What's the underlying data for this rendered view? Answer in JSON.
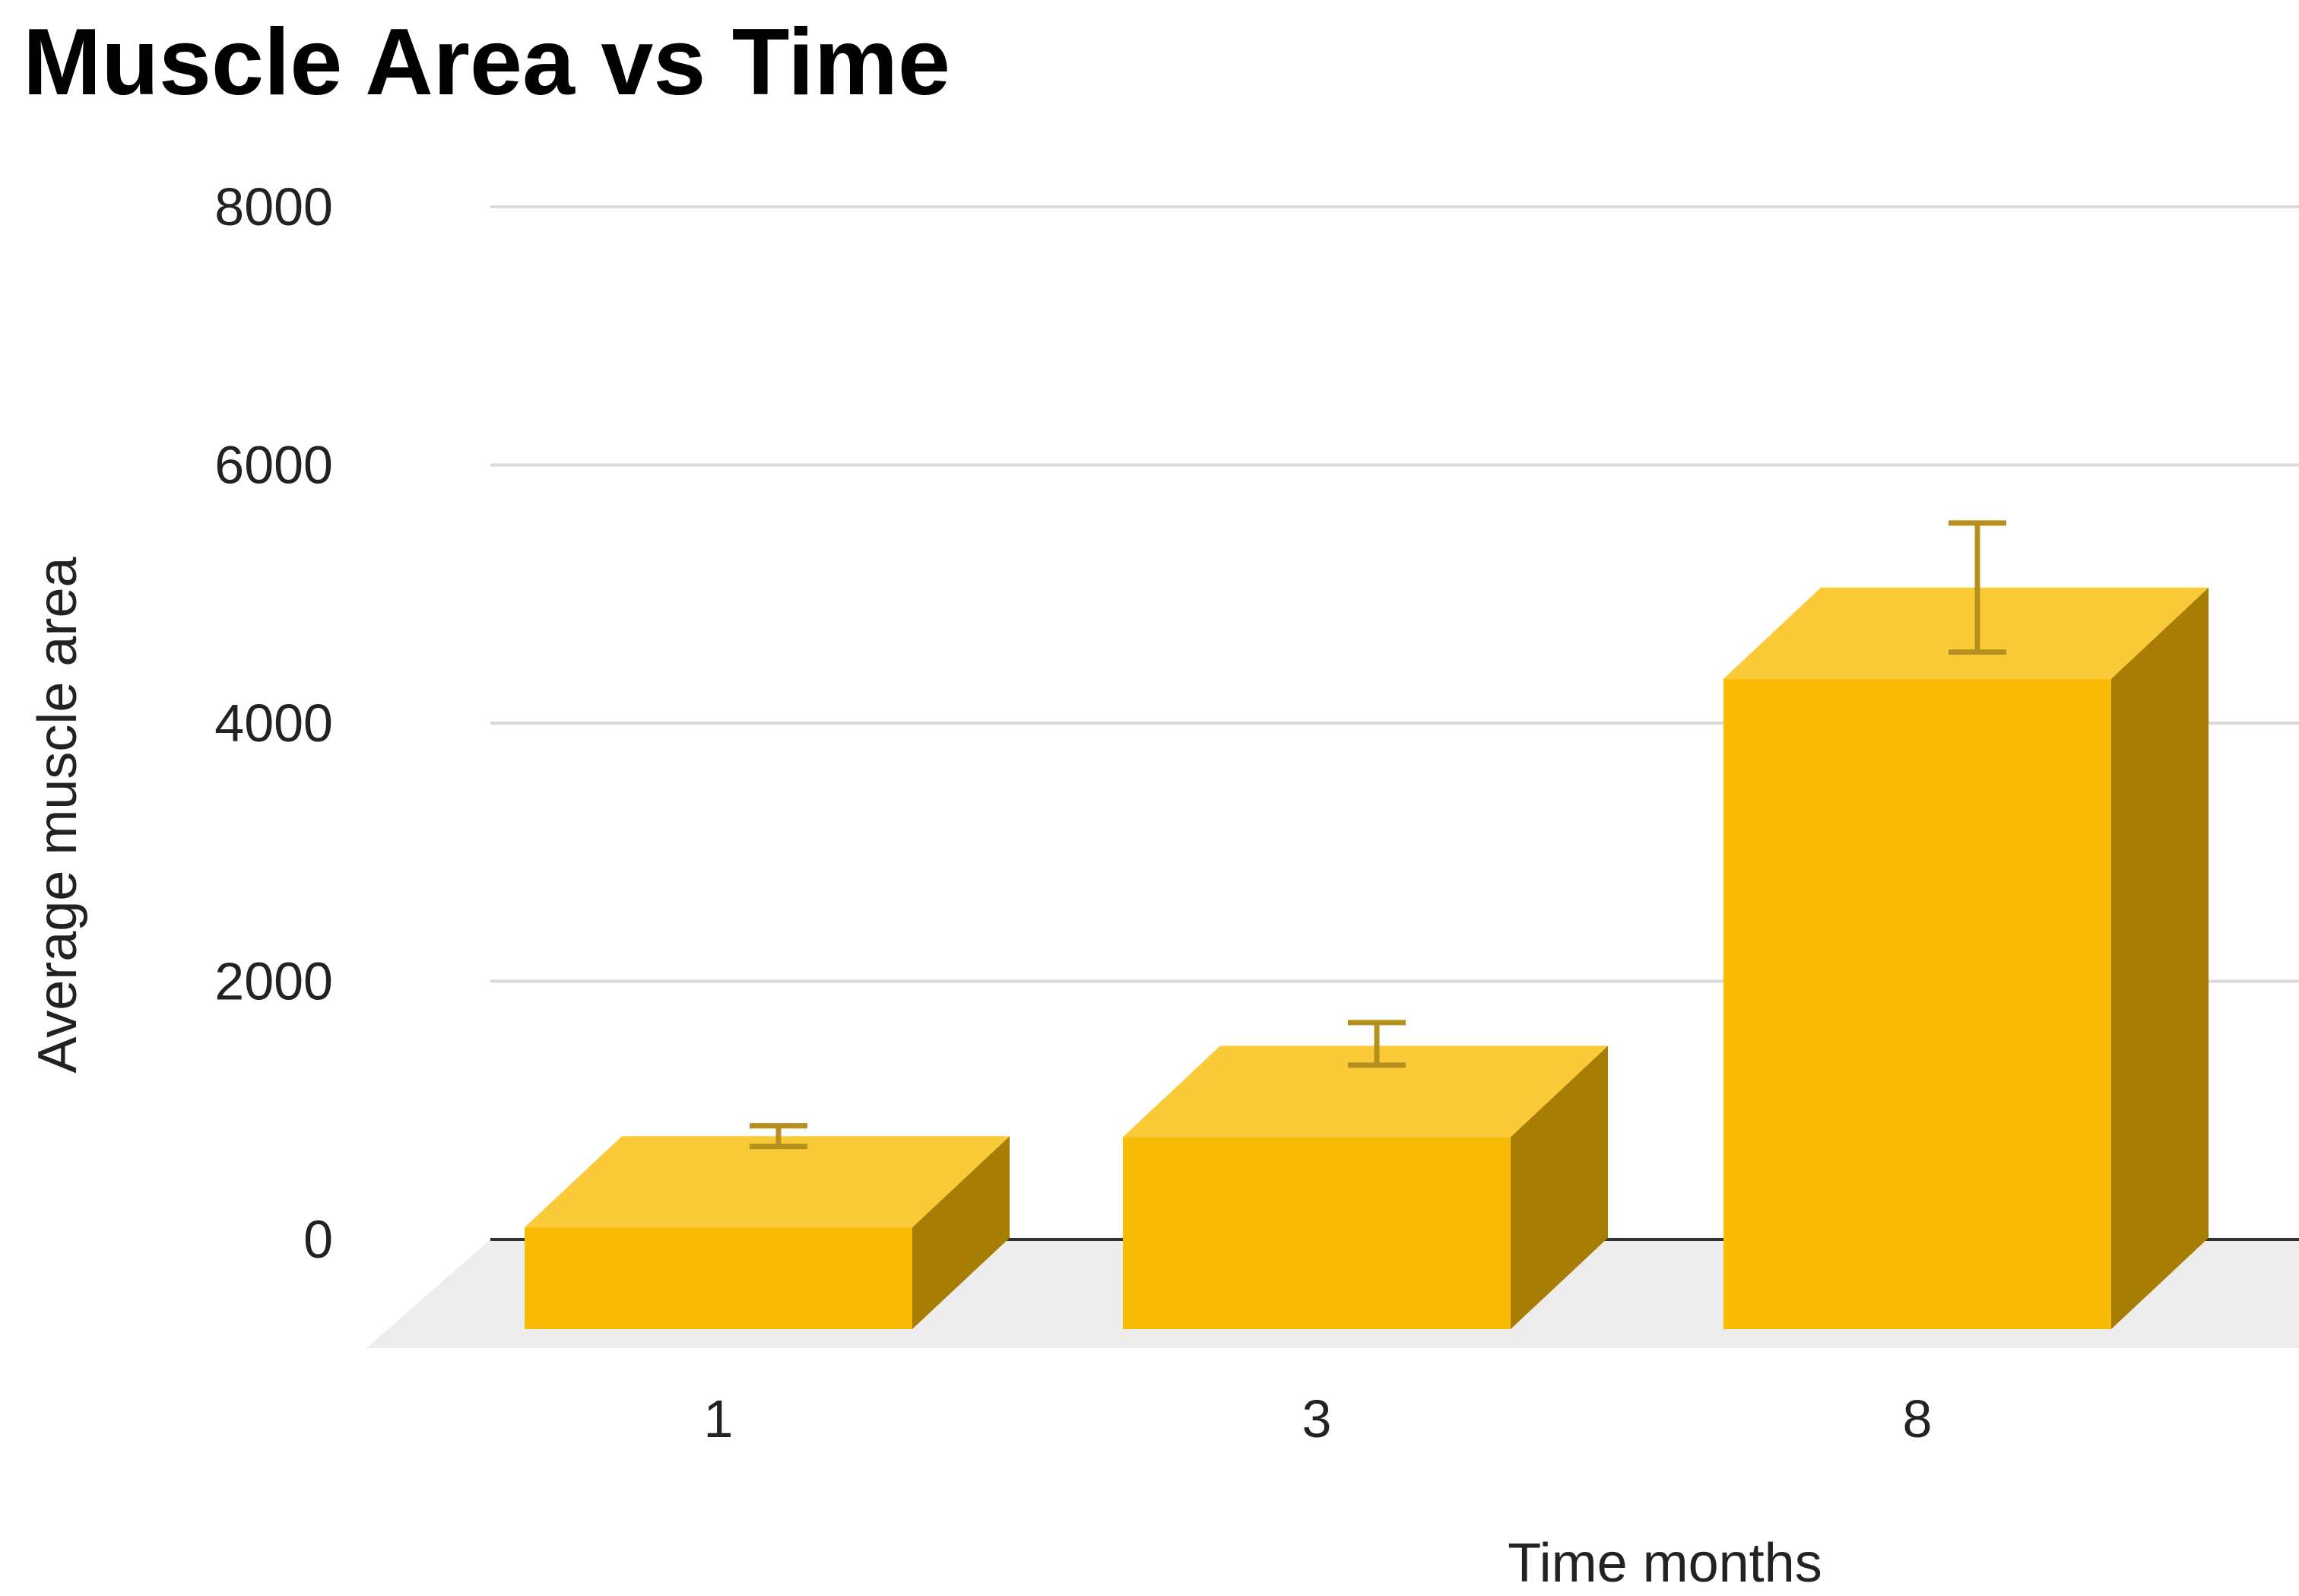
{
  "chart_data": {
    "type": "bar",
    "title": "Muscle Area vs Time",
    "xlabel": "Time months",
    "ylabel": "Average muscle area",
    "categories": [
      "1",
      "3",
      "8"
    ],
    "values": [
      800,
      1500,
      5050
    ],
    "error_bars": [
      {
        "low": 720,
        "high": 880
      },
      {
        "low": 1350,
        "high": 1680
      },
      {
        "low": 4550,
        "high": 5550
      }
    ],
    "ylim": [
      0,
      8000
    ],
    "yticks": [
      0,
      2000,
      4000,
      6000,
      8000
    ],
    "grid": true,
    "style": "3d",
    "colors": {
      "bar_front": "#F9BC06",
      "bar_top": "#FACA38",
      "bar_side": "#A87D03",
      "error_bar": "#B5901F",
      "gridline": "#D9D9D9",
      "floor": "#EDEDED",
      "baseline": "#333333"
    }
  }
}
